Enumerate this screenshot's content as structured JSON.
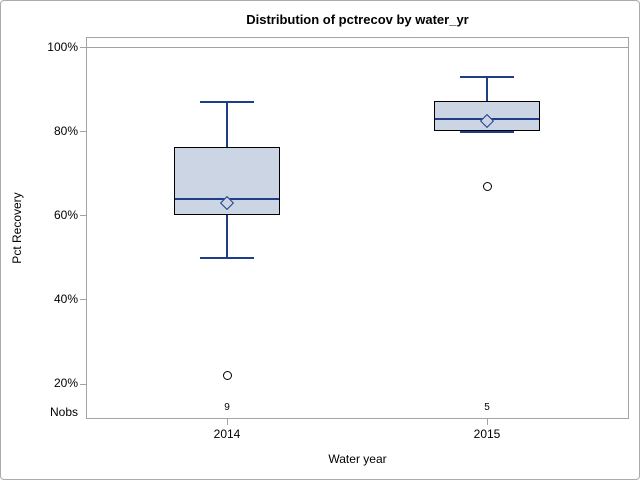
{
  "chart_data": {
    "type": "boxplot",
    "title": "Distribution of pctrecov by water_yr",
    "xlabel": "Water year",
    "ylabel": "Pct Recovery",
    "categories": [
      "2014",
      "2015"
    ],
    "nobs_label": "Nobs",
    "nobs": [
      "9",
      "5"
    ],
    "y_ticks": [
      {
        "value": 100,
        "label": "100%"
      },
      {
        "value": 80,
        "label": "80%"
      },
      {
        "value": 60,
        "label": "60%"
      },
      {
        "value": 40,
        "label": "40%"
      },
      {
        "value": 20,
        "label": "20%"
      }
    ],
    "ylim": [
      11.7,
      102.5
    ],
    "reference_line": 100,
    "grid": false,
    "legend": "none",
    "series": [
      {
        "category": "2014",
        "n": 9,
        "lower_whisker": 50,
        "q1": 60.5,
        "median": 64,
        "q3": 76,
        "upper_whisker": 87,
        "mean": 63,
        "outliers": [
          22
        ]
      },
      {
        "category": "2015",
        "n": 5,
        "lower_whisker": 80.5,
        "q1": 80.5,
        "median": 83,
        "q3": 87,
        "upper_whisker": 93,
        "mean": 82.5,
        "outliers": [
          67
        ]
      }
    ],
    "colors": {
      "box_fill": "#ccd5e3",
      "box_border": "#000000",
      "line": "#1f3d8a",
      "outlier_stroke": "#000000",
      "frame": "#a3a3a3",
      "reference_line": "#a3a3a3",
      "figure_border": "#ababab"
    }
  }
}
